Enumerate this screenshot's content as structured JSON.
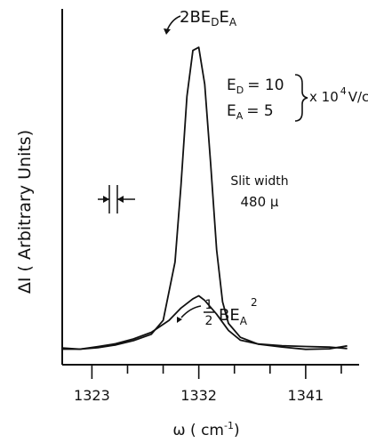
{
  "chart_data": {
    "type": "line",
    "xlabel": "ω ( cm",
    "xlabel_exp": "-1",
    "xlabel_close": ")",
    "ylabel": "ΔI ( Arbitrary Units)",
    "x_ticks": [
      1323,
      1332,
      1341
    ],
    "xlim": [
      1320.5,
      1345.5
    ],
    "ylim": [
      0,
      1.05
    ],
    "grid": false,
    "legend": "none",
    "series": [
      {
        "name": "2BE_D E_A",
        "label": {
          "main": "2BE",
          "sub1": "D",
          "mid": "E",
          "sub2": "A"
        },
        "points": [
          [
            1320.5,
            0.02
          ],
          [
            1322,
            0.02
          ],
          [
            1323.5,
            0.025
          ],
          [
            1325,
            0.03
          ],
          [
            1326.5,
            0.04
          ],
          [
            1328,
            0.06
          ],
          [
            1329,
            0.11
          ],
          [
            1330,
            0.3
          ],
          [
            1330.5,
            0.55
          ],
          [
            1331,
            0.84
          ],
          [
            1331.5,
            0.99
          ],
          [
            1332,
            1.0
          ],
          [
            1332.5,
            0.88
          ],
          [
            1333,
            0.62
          ],
          [
            1333.5,
            0.34
          ],
          [
            1334,
            0.17
          ],
          [
            1334.5,
            0.1
          ],
          [
            1335.5,
            0.05
          ],
          [
            1337,
            0.03
          ],
          [
            1339,
            0.025
          ],
          [
            1341,
            0.02
          ],
          [
            1343,
            0.02
          ],
          [
            1344.5,
            0.025
          ]
        ]
      },
      {
        "name": "1/2 BE_A^2",
        "label": {
          "num": "1",
          "den": "2",
          "text": "BE",
          "sub": "A",
          "sup": "2"
        },
        "points": [
          [
            1320.5,
            0.02
          ],
          [
            1322,
            0.02
          ],
          [
            1323.5,
            0.025
          ],
          [
            1325,
            0.03
          ],
          [
            1326.5,
            0.045
          ],
          [
            1328,
            0.07
          ],
          [
            1329.5,
            0.11
          ],
          [
            1330.5,
            0.15
          ],
          [
            1331.5,
            0.18
          ],
          [
            1332,
            0.19
          ],
          [
            1332.5,
            0.175
          ],
          [
            1333.5,
            0.13
          ],
          [
            1334.5,
            0.08
          ],
          [
            1335.5,
            0.05
          ],
          [
            1337,
            0.035
          ],
          [
            1339,
            0.025
          ],
          [
            1341,
            0.02
          ],
          [
            1343,
            0.02
          ],
          [
            1344.5,
            0.02
          ]
        ]
      }
    ],
    "annotations": {
      "ed_label": "E",
      "ed_sub": "D",
      "ed_value": "= 10",
      "ea_label": "E",
      "ea_sub": "A",
      "ea_value": "= 5",
      "field_units_prefix": "x 10",
      "field_units_exp": "4",
      "field_units_suffix": "V/cm",
      "slit_title": "Slit width",
      "slit_value": "480 μ"
    }
  }
}
